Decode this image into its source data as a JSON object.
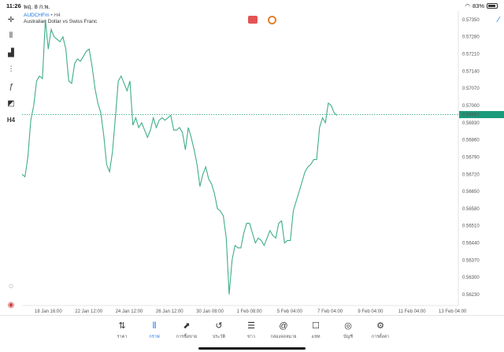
{
  "status_bar": {
    "time": "11:26",
    "date": "พฤ. 8 ก.พ.",
    "battery": "83%"
  },
  "chart": {
    "symbol": "AUDCHFm",
    "timeframe_label": "• H4",
    "description": "Australian Dollar vs Swiss Franc",
    "line_color": "#3fae86",
    "current_price_color": "#1a9c7c",
    "current_price_label": "0.56963"
  },
  "chart_data": {
    "type": "line",
    "title": "AUDCHFm, H4",
    "subtitle": "Australian Dollar vs Swiss Franc",
    "ylim": [
      0.56185,
      0.57385
    ],
    "y_ticks": [
      "0.57350",
      "0.57280",
      "0.57210",
      "0.57140",
      "0.57070",
      "0.57000",
      "0.56930",
      "0.56860",
      "0.56790",
      "0.56720",
      "0.56650",
      "0.56580",
      "0.56510",
      "0.56440",
      "0.56370",
      "0.56300",
      "0.56230"
    ],
    "x_ticks": [
      "18 Jan 16:00",
      "22 Jan 12:00",
      "24 Jan 12:00",
      "26 Jan 12:00",
      "30 Jan 08:00",
      "1 Feb 08:00",
      "5 Feb 04:00",
      "7 Feb 04:00",
      "9 Feb 04:00",
      "11 Feb 04:00",
      "13 Feb 04:00"
    ],
    "grid": false,
    "current_price": 0.56963,
    "series": [
      {
        "values": [
          0.5672,
          0.5671,
          0.5679,
          0.5694,
          0.57,
          0.571,
          0.5712,
          0.5711,
          0.5735,
          0.5723,
          0.5731,
          0.5728,
          0.5727,
          0.5726,
          0.5728,
          0.5723,
          0.571,
          0.5709,
          0.5717,
          0.5719,
          0.5718,
          0.572,
          0.5722,
          0.5723,
          0.5716,
          0.5707,
          0.5701,
          0.5697,
          0.5688,
          0.5676,
          0.5673,
          0.5681,
          0.5695,
          0.571,
          0.5712,
          0.5709,
          0.5706,
          0.571,
          0.5692,
          0.5695,
          0.5691,
          0.5693,
          0.569,
          0.5687,
          0.569,
          0.5695,
          0.5691,
          0.5694,
          0.5695,
          0.5694,
          0.5695,
          0.5696,
          0.569,
          0.569,
          0.5691,
          0.5689,
          0.5682,
          0.5691,
          0.5687,
          0.5682,
          0.5676,
          0.5667,
          0.5672,
          0.5675,
          0.567,
          0.5668,
          0.5664,
          0.5658,
          0.5657,
          0.5655,
          0.5646,
          0.5623,
          0.5637,
          0.5643,
          0.5642,
          0.5642,
          0.5648,
          0.5652,
          0.5652,
          0.5648,
          0.5644,
          0.5646,
          0.5645,
          0.5643,
          0.5646,
          0.5649,
          0.5647,
          0.5646,
          0.5652,
          0.5653,
          0.5644,
          0.5645,
          0.5645,
          0.5657,
          0.5661,
          0.5665,
          0.5669,
          0.5673,
          0.5675,
          0.5676,
          0.5678,
          0.5678,
          0.5691,
          0.5695,
          0.5693,
          0.5701,
          0.57,
          0.5697,
          0.5696
        ]
      }
    ]
  },
  "tabs": [
    {
      "label": "ราคา",
      "icon": "arrows-updown-icon",
      "glyph": "⇅"
    },
    {
      "label": "กราฟ",
      "icon": "candles-icon",
      "glyph": "⫴"
    },
    {
      "label": "การซื้อขาย",
      "icon": "trade-chart-icon",
      "glyph": "⬈"
    },
    {
      "label": "ประวัติ",
      "icon": "history-icon",
      "glyph": "↺"
    },
    {
      "label": "ข่าว",
      "icon": "news-icon",
      "glyph": "☰"
    },
    {
      "label": "กล่องจดหมาย",
      "icon": "at-icon",
      "glyph": "@"
    },
    {
      "label": "แชท",
      "icon": "chat-icon",
      "glyph": "☐"
    },
    {
      "label": "บัญชี",
      "icon": "account-icon",
      "glyph": "◎"
    },
    {
      "label": "การตั้งค่า",
      "icon": "gear-icon",
      "glyph": "⚙"
    }
  ],
  "left_tools": [
    {
      "icon": "crosshair-icon",
      "glyph": "✛"
    },
    {
      "icon": "chart-type-icon",
      "glyph": "⫴"
    },
    {
      "icon": "indicators-icon",
      "glyph": "▟"
    },
    {
      "icon": "settings-sliders-icon",
      "glyph": "⫶"
    },
    {
      "icon": "function-icon",
      "glyph": "ƒ"
    },
    {
      "icon": "objects-icon",
      "glyph": "◩"
    },
    {
      "icon": "timeframe-h4",
      "glyph": "H4"
    }
  ]
}
